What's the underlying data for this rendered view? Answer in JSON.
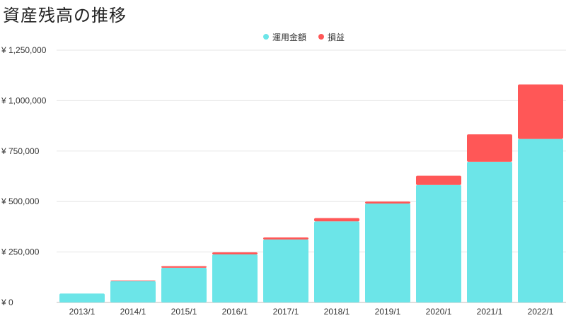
{
  "chart_data": {
    "type": "bar",
    "stacked": true,
    "title": "資産残高の推移",
    "categories": [
      "2013/1",
      "2014/1",
      "2015/1",
      "2016/1",
      "2017/1",
      "2018/1",
      "2019/1",
      "2020/1",
      "2021/1",
      "2022/1"
    ],
    "series": [
      {
        "name": "運用金額",
        "color": "#6ce5e8",
        "values": [
          44000,
          106000,
          172000,
          238000,
          312000,
          402000,
          490000,
          582000,
          697000,
          810000
        ]
      },
      {
        "name": "損益",
        "color": "#ff5757",
        "values": [
          0,
          3000,
          8000,
          10000,
          10000,
          16000,
          10000,
          46000,
          136000,
          270000
        ]
      }
    ],
    "y_ticks": [
      "¥ 0",
      "¥ 250,000",
      "¥ 500,000",
      "¥ 750,000",
      "¥ 1,000,000",
      "¥ 1,250,000"
    ],
    "ylim": [
      0,
      1250000
    ],
    "grid": true,
    "legend_position": "top-center"
  }
}
